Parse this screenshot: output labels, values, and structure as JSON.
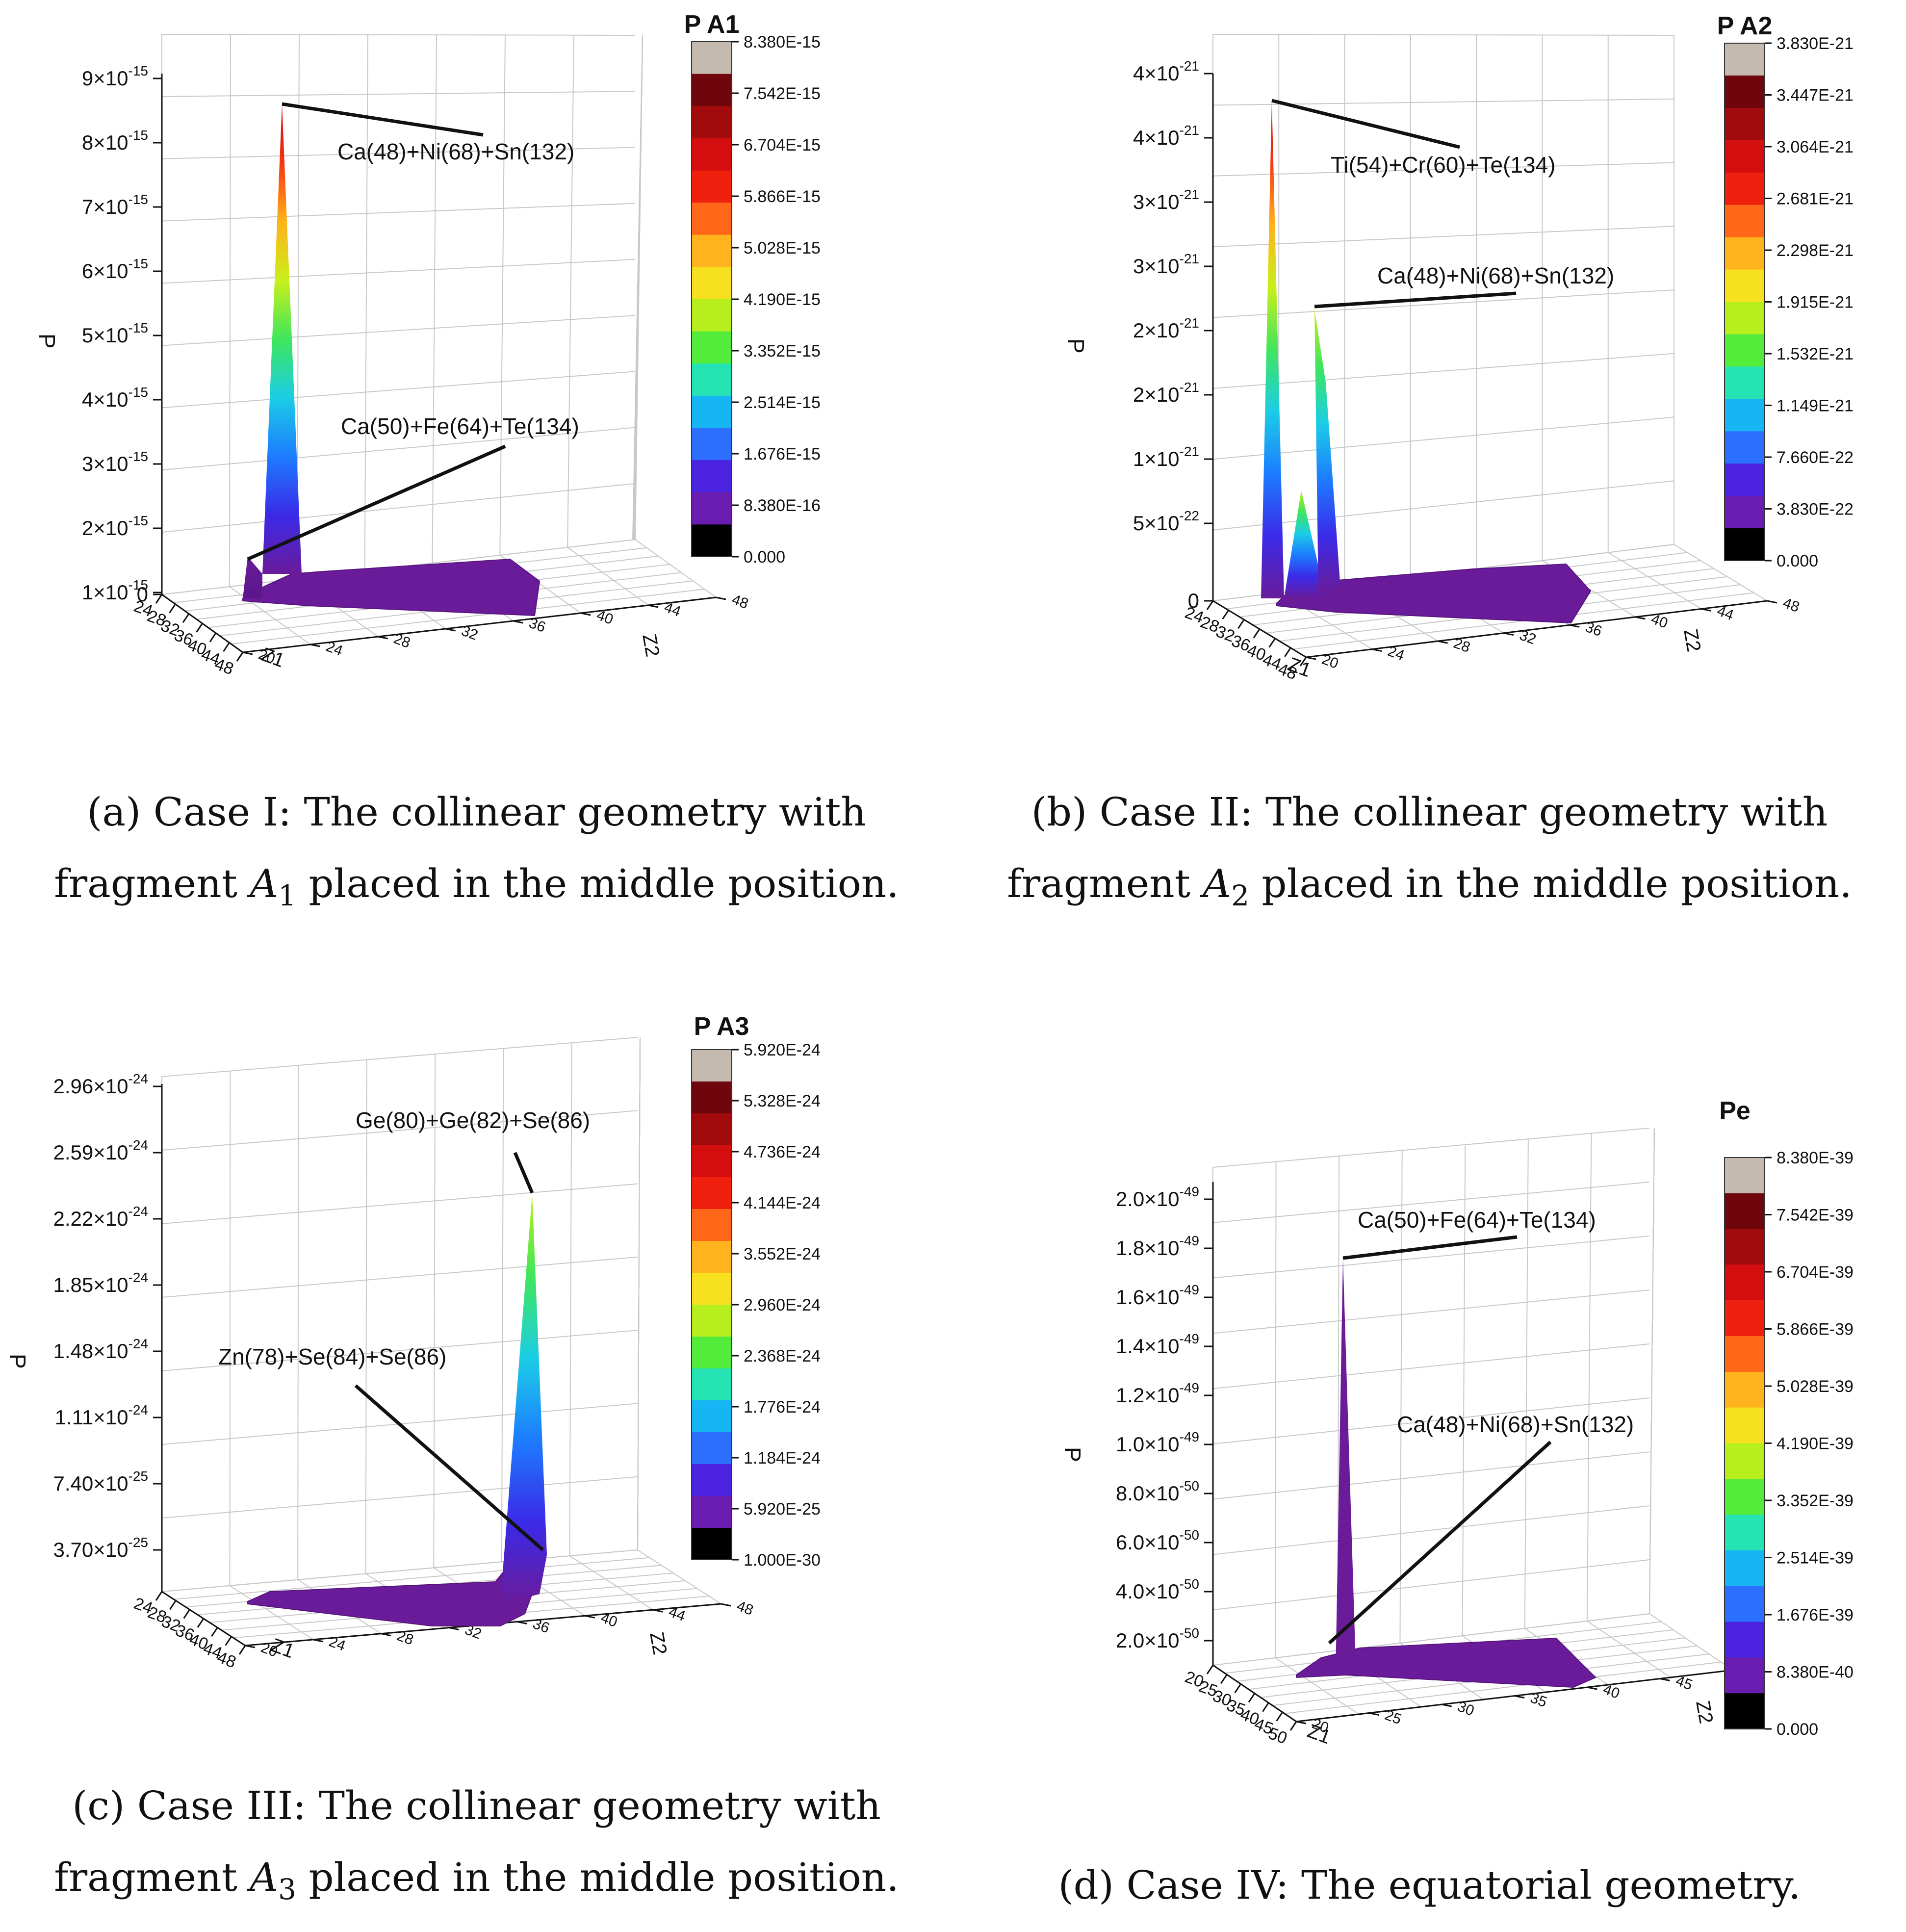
{
  "colors": {
    "colorbar_A": [
      "#2b0c33",
      "#55007a",
      "#7412c4",
      "#3f3cff",
      "#2a8dff",
      "#10d6ea",
      "#2fe08a",
      "#7fe62a",
      "#d8ef16",
      "#ffd21d",
      "#ff8f16",
      "#ff3a14",
      "#e50a0a",
      "#c20f0f",
      "#9b0c10",
      "#6d070c",
      "#c9bfb1"
    ],
    "colorbar_dark": [
      "#000000",
      "#6a1bb0",
      "#4b22e0",
      "#2c6fff",
      "#16b5f3",
      "#25e3b3",
      "#54ec3b",
      "#b7ee1d",
      "#f7e11e",
      "#ffb31c",
      "#ff6818",
      "#f0200f",
      "#d40e0e",
      "#a10b0e",
      "#6e060b",
      "#c4bab0"
    ],
    "surface": "#6a1b9a",
    "surface_edge": "#55157c",
    "grid": "#c8c8c8",
    "axis": "#111111"
  },
  "panels": [
    {
      "id": "a",
      "zlabel": "P",
      "colorbar_title": "P A1",
      "colorbar_ticks": [
        "8.380E-15",
        "7.542E-15",
        "6.704E-15",
        "5.866E-15",
        "5.028E-15",
        "4.190E-15",
        "3.352E-15",
        "2.514E-15",
        "1.676E-15",
        "8.380E-16",
        "0.000"
      ],
      "zticks": [
        {
          "m": "9×10",
          "e": "-15"
        },
        {
          "m": "8×10",
          "e": "-15"
        },
        {
          "m": "7×10",
          "e": "-15"
        },
        {
          "m": "6×10",
          "e": "-15"
        },
        {
          "m": "5×10",
          "e": "-15"
        },
        {
          "m": "4×10",
          "e": "-15"
        },
        {
          "m": "3×10",
          "e": "-15"
        },
        {
          "m": "2×10",
          "e": "-15"
        },
        {
          "m": "1×10",
          "e": "-15"
        },
        {
          "m": "0",
          "e": ""
        }
      ],
      "x_axis_label": "Z1",
      "x_ticks": [
        "24",
        "28",
        "32",
        "36",
        "40",
        "44",
        "48"
      ],
      "y_axis_label": "Z2",
      "y_ticks": [
        "20",
        "24",
        "28",
        "32",
        "36",
        "40",
        "44",
        "48"
      ],
      "annotations": [
        "Ca(48)+Ni(68)+Sn(132)",
        "Ca(50)+Fe(64)+Te(134)"
      ],
      "caption_line1": "(a) Case I: The collinear geometry with",
      "caption_line2_pre": "fragment ",
      "caption_sym": "A",
      "caption_sub": "1",
      "caption_line2_post": " placed in the middle position."
    },
    {
      "id": "b",
      "zlabel": "P",
      "colorbar_title": "P A2",
      "colorbar_ticks": [
        "3.830E-21",
        "3.447E-21",
        "3.064E-21",
        "2.681E-21",
        "2.298E-21",
        "1.915E-21",
        "1.532E-21",
        "1.149E-21",
        "7.660E-22",
        "3.830E-22",
        "0.000"
      ],
      "zticks": [
        {
          "m": "4×10",
          "e": "-21"
        },
        {
          "m": "4×10",
          "e": "-21"
        },
        {
          "m": "3×10",
          "e": "-21"
        },
        {
          "m": "3×10",
          "e": "-21"
        },
        {
          "m": "2×10",
          "e": "-21"
        },
        {
          "m": "2×10",
          "e": "-21"
        },
        {
          "m": "1×10",
          "e": "-21"
        },
        {
          "m": "5×10",
          "e": "-22"
        },
        {
          "m": "0",
          "e": ""
        }
      ],
      "x_axis_label": "Z1",
      "x_ticks": [
        "24",
        "28",
        "32",
        "36",
        "40",
        "44",
        "48"
      ],
      "y_axis_label": "Z2",
      "y_ticks": [
        "20",
        "24",
        "28",
        "32",
        "36",
        "40",
        "44",
        "48"
      ],
      "annotations": [
        "Ti(54)+Cr(60)+Te(134)",
        "Ca(48)+Ni(68)+Sn(132)"
      ],
      "caption_line1": "(b) Case II: The collinear geometry with",
      "caption_line2_pre": "fragment ",
      "caption_sym": "A",
      "caption_sub": "2",
      "caption_line2_post": " placed in the middle position."
    },
    {
      "id": "c",
      "zlabel": "P",
      "colorbar_title": "P A3",
      "colorbar_ticks": [
        "5.920E-24",
        "5.328E-24",
        "4.736E-24",
        "4.144E-24",
        "3.552E-24",
        "2.960E-24",
        "2.368E-24",
        "1.776E-24",
        "1.184E-24",
        "5.920E-25",
        "1.000E-30"
      ],
      "zticks": [
        {
          "m": "2.96×10",
          "e": "-24"
        },
        {
          "m": "2.59×10",
          "e": "-24"
        },
        {
          "m": "2.22×10",
          "e": "-24"
        },
        {
          "m": "1.85×10",
          "e": "-24"
        },
        {
          "m": "1.48×10",
          "e": "-24"
        },
        {
          "m": "1.11×10",
          "e": "-24"
        },
        {
          "m": "7.40×10",
          "e": "-25"
        },
        {
          "m": "3.70×10",
          "e": "-25"
        }
      ],
      "x_axis_label": "Z1",
      "x_ticks": [
        "24",
        "28",
        "32",
        "36",
        "40",
        "44",
        "48"
      ],
      "y_axis_label": "Z2",
      "y_ticks": [
        "20",
        "24",
        "28",
        "32",
        "36",
        "40",
        "44",
        "48"
      ],
      "annotations": [
        "Ge(80)+Ge(82)+Se(86)",
        "Zn(78)+Se(84)+Se(86)"
      ],
      "caption_line1": "(c) Case III: The collinear geometry with",
      "caption_line2_pre": "fragment ",
      "caption_sym": "A",
      "caption_sub": "3",
      "caption_line2_post": " placed in the middle position."
    },
    {
      "id": "d",
      "zlabel": "P",
      "colorbar_title": "Pe",
      "colorbar_ticks": [
        "8.380E-39",
        "7.542E-39",
        "6.704E-39",
        "5.866E-39",
        "5.028E-39",
        "4.190E-39",
        "3.352E-39",
        "2.514E-39",
        "1.676E-39",
        "8.380E-40",
        "0.000"
      ],
      "zticks": [
        {
          "m": "2.0×10",
          "e": "-49"
        },
        {
          "m": "1.8×10",
          "e": "-49"
        },
        {
          "m": "1.6×10",
          "e": "-49"
        },
        {
          "m": "1.4×10",
          "e": "-49"
        },
        {
          "m": "1.2×10",
          "e": "-49"
        },
        {
          "m": "1.0×10",
          "e": "-49"
        },
        {
          "m": "8.0×10",
          "e": "-50"
        },
        {
          "m": "6.0×10",
          "e": "-50"
        },
        {
          "m": "4.0×10",
          "e": "-50"
        },
        {
          "m": "2.0×10",
          "e": "-50"
        }
      ],
      "x_axis_label": "Z1",
      "x_ticks": [
        "20",
        "25",
        "30",
        "35",
        "40",
        "45",
        "50"
      ],
      "y_axis_label": "Z2",
      "y_ticks": [
        "20",
        "25",
        "30",
        "35",
        "40",
        "45",
        "50"
      ],
      "annotations": [
        "Ca(50)+Fe(64)+Te(134)",
        "Ca(48)+Ni(68)+Sn(132)"
      ],
      "caption_line1": "(d) Case IV: The equatorial geometry.",
      "caption_line2_pre": "",
      "caption_sym": "",
      "caption_sub": "",
      "caption_line2_post": ""
    }
  ],
  "chart_data": [
    {
      "type": "surface3d",
      "title": "P A1",
      "xlabel": "Z1",
      "ylabel": "Z2",
      "zlabel": "P",
      "zlim": [
        0,
        9e-15
      ],
      "colorbar_range": [
        0,
        8.38e-15
      ],
      "peaks": [
        {
          "label": "Ca(48)+Ni(68)+Sn(132)",
          "z1": 20,
          "z2": 28,
          "value": 8.38e-15
        },
        {
          "label": "Ca(50)+Fe(64)+Te(134)",
          "z1": 20,
          "z2": 26,
          "value": 6e-16
        }
      ]
    },
    {
      "type": "surface3d",
      "title": "P A2",
      "xlabel": "Z1",
      "ylabel": "Z2",
      "zlabel": "P",
      "zlim": [
        0,
        4.25e-21
      ],
      "colorbar_range": [
        0,
        3.83e-21
      ],
      "peaks": [
        {
          "label": "Ti(54)+Cr(60)+Te(134)",
          "z1": 22,
          "z2": 24,
          "value": 3.83e-21
        },
        {
          "label": "Ca(48)+Ni(68)+Sn(132)",
          "z1": 20,
          "z2": 28,
          "value": 2.2e-21
        }
      ]
    },
    {
      "type": "surface3d",
      "title": "P A3",
      "xlabel": "Z1",
      "ylabel": "Z2",
      "zlabel": "P",
      "zlim": [
        0,
        2.96e-24
      ],
      "colorbar_range": [
        1e-30,
        5.92e-24
      ],
      "peaks": [
        {
          "label": "Ge(80)+Ge(82)+Se(86)",
          "z1": 32,
          "z2": 32,
          "value": 2.2e-24
        },
        {
          "label": "Zn(78)+Se(84)+Se(86)",
          "z1": 30,
          "z2": 34,
          "value": 3e-25
        }
      ]
    },
    {
      "type": "surface3d",
      "title": "Pe",
      "xlabel": "Z1",
      "ylabel": "Z2",
      "zlabel": "P",
      "zlim": [
        0,
        2e-49
      ],
      "colorbar_range": [
        0,
        8.38e-39
      ],
      "peaks": [
        {
          "label": "Ca(50)+Fe(64)+Te(134)",
          "z1": 20,
          "z2": 26,
          "value": 1.75e-49
        },
        {
          "label": "Ca(48)+Ni(68)+Sn(132)",
          "z1": 20,
          "z2": 28,
          "value": 1e-50
        }
      ]
    }
  ]
}
